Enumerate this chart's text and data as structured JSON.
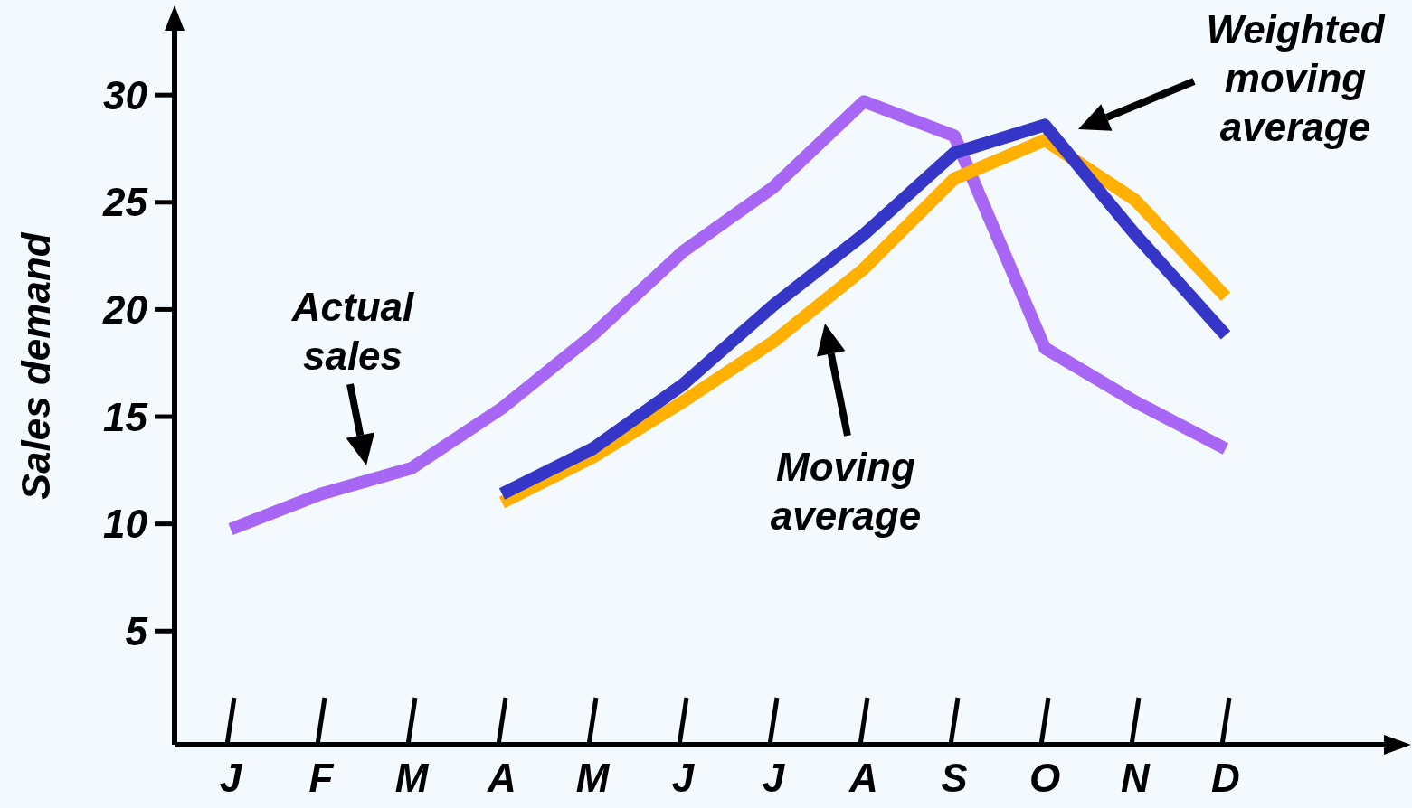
{
  "chart_data": {
    "type": "line",
    "ylabel": "Sales demand",
    "categories": [
      "J",
      "F",
      "M",
      "A",
      "M",
      "J",
      "J",
      "A",
      "S",
      "O",
      "N",
      "D"
    ],
    "ylim": [
      -0.3,
      33
    ],
    "yticks": [
      5,
      10,
      15,
      20,
      25,
      30
    ],
    "grid": false,
    "legend": false,
    "marker": "none",
    "line_style": "solid",
    "series": [
      {
        "color": "#a866f5",
        "values": [
          9.75,
          11.4,
          12.6,
          15.4,
          18.8,
          22.7,
          25.7,
          29.7,
          28.1,
          18.2,
          15.7,
          13.5
        ]
      },
      {
        "color": "#ffb000",
        "values": [
          null,
          null,
          null,
          11.0,
          13.1,
          15.7,
          18.5,
          21.9,
          26.1,
          27.9,
          25.1,
          20.6
        ]
      },
      {
        "color": "#3535c8",
        "values": [
          null,
          null,
          null,
          11.4,
          13.5,
          16.5,
          20.2,
          23.5,
          27.3,
          28.6,
          23.5,
          18.8
        ]
      }
    ],
    "annotations": [
      "Actual\nsales",
      "Moving\naverage",
      "Weighted\nmoving\naverage"
    ]
  }
}
